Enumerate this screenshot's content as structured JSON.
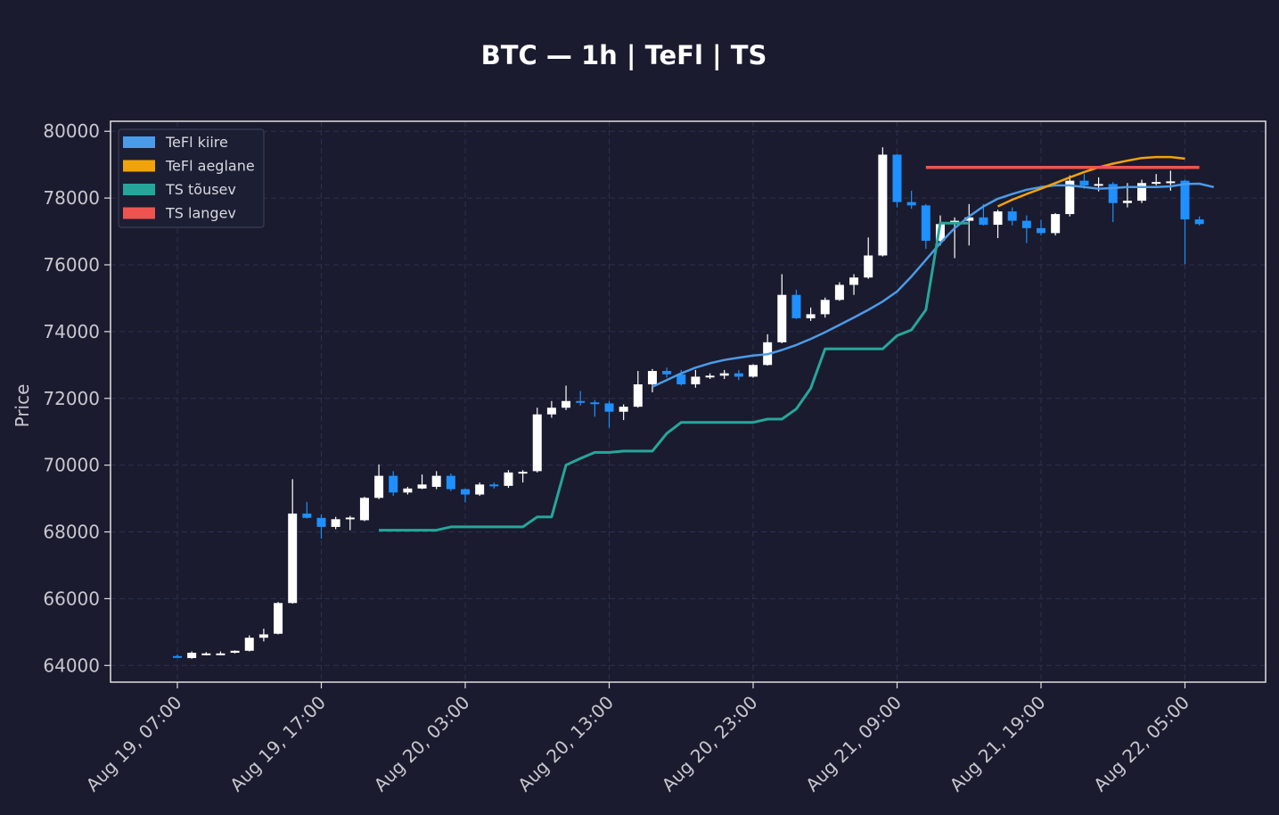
{
  "chart_data": {
    "type": "candlestick",
    "title": "BTC — 1h  |  TeFl  |  TS",
    "xlabel": "",
    "ylabel": "Price",
    "ylim": [
      63500,
      80300
    ],
    "y_ticks": [
      64000,
      66000,
      68000,
      70000,
      72000,
      74000,
      76000,
      78000,
      80000
    ],
    "x_ticks": [
      "Aug 19, 07:00",
      "Aug 19, 17:00",
      "Aug 20, 03:00",
      "Aug 20, 13:00",
      "Aug 20, 23:00",
      "Aug 21, 09:00",
      "Aug 21, 19:00",
      "Aug 22, 05:00"
    ],
    "x_start": "Aug 19, 07:00",
    "bar_interval": "1h",
    "bar_count": 72,
    "grid": true,
    "legend_position": "upper-left",
    "colors": {
      "background": "#1a1b2e",
      "up_candle": "#ffffff",
      "down_candle": "#1e90ff",
      "grid": "#2d3050",
      "frame": "#e0e0e0"
    },
    "candles": [
      [
        64280,
        64330,
        64230,
        64250
      ],
      [
        64220,
        64420,
        64200,
        64380
      ],
      [
        64330,
        64400,
        64300,
        64360
      ],
      [
        64350,
        64420,
        64320,
        64360
      ],
      [
        64380,
        64450,
        64360,
        64440
      ],
      [
        64440,
        64900,
        64420,
        64830
      ],
      [
        64830,
        65100,
        64720,
        64930
      ],
      [
        64950,
        65900,
        64930,
        65870
      ],
      [
        65870,
        69580,
        65850,
        68550
      ],
      [
        68550,
        68900,
        68400,
        68420
      ],
      [
        68420,
        68520,
        67800,
        68150
      ],
      [
        68150,
        68450,
        68080,
        68380
      ],
      [
        68380,
        68480,
        68050,
        68430
      ],
      [
        68350,
        69050,
        68320,
        69020
      ],
      [
        69020,
        70020,
        68980,
        69680
      ],
      [
        69680,
        69820,
        69080,
        69180
      ],
      [
        69180,
        69350,
        69120,
        69300
      ],
      [
        69300,
        69720,
        69280,
        69420
      ],
      [
        69350,
        69820,
        69280,
        69680
      ],
      [
        69680,
        69750,
        69220,
        69280
      ],
      [
        69280,
        69300,
        68880,
        69120
      ],
      [
        69120,
        69480,
        69080,
        69420
      ],
      [
        69420,
        69480,
        69300,
        69380
      ],
      [
        69380,
        69850,
        69320,
        69780
      ],
      [
        69780,
        69850,
        69480,
        69800
      ],
      [
        69820,
        71720,
        69780,
        71520
      ],
      [
        71520,
        71920,
        71420,
        71720
      ],
      [
        71720,
        72380,
        71650,
        71920
      ],
      [
        71920,
        72220,
        71780,
        71880
      ],
      [
        71880,
        71950,
        71450,
        71850
      ],
      [
        71850,
        71920,
        71120,
        71600
      ],
      [
        71600,
        71820,
        71350,
        71750
      ],
      [
        71750,
        72820,
        71720,
        72420
      ],
      [
        72420,
        72880,
        72180,
        72820
      ],
      [
        72820,
        72920,
        72620,
        72720
      ],
      [
        72720,
        72850,
        72380,
        72420
      ],
      [
        72420,
        72850,
        72320,
        72650
      ],
      [
        72650,
        72750,
        72580,
        72680
      ],
      [
        72680,
        72850,
        72580,
        72750
      ],
      [
        72750,
        72850,
        72550,
        72650
      ],
      [
        72650,
        73020,
        72620,
        73000
      ],
      [
        73000,
        73920,
        72980,
        73680
      ],
      [
        73680,
        75720,
        73650,
        75100
      ],
      [
        75100,
        75250,
        74380,
        74400
      ],
      [
        74400,
        74720,
        74320,
        74520
      ],
      [
        74520,
        75020,
        74420,
        74950
      ],
      [
        74950,
        75480,
        74920,
        75400
      ],
      [
        75400,
        75720,
        75100,
        75620
      ],
      [
        75620,
        76820,
        75580,
        76280
      ],
      [
        76280,
        79520,
        76250,
        79300
      ],
      [
        79300,
        79320,
        77720,
        77880
      ],
      [
        77880,
        78220,
        77680,
        77780
      ],
      [
        77780,
        77820,
        76480,
        76720
      ],
      [
        76720,
        77480,
        76580,
        77220
      ],
      [
        77220,
        77420,
        76200,
        77320
      ],
      [
        77320,
        77820,
        76580,
        77420
      ],
      [
        77420,
        77820,
        77180,
        77200
      ],
      [
        77200,
        77650,
        76800,
        77600
      ],
      [
        77600,
        77720,
        77180,
        77320
      ],
      [
        77320,
        77480,
        76650,
        77100
      ],
      [
        77100,
        77350,
        76880,
        76950
      ],
      [
        76950,
        77550,
        76880,
        77520
      ],
      [
        77520,
        78680,
        77450,
        78520
      ],
      [
        78520,
        78720,
        78280,
        78380
      ],
      [
        78380,
        78620,
        78200,
        78420
      ],
      [
        78420,
        78480,
        77280,
        77850
      ],
      [
        77850,
        78450,
        77720,
        77920
      ],
      [
        77920,
        78550,
        77850,
        78450
      ],
      [
        78450,
        78720,
        78380,
        78480
      ],
      [
        78480,
        78820,
        78220,
        78500
      ],
      [
        78520,
        78550,
        76020,
        77360
      ],
      [
        77360,
        77450,
        77180,
        77220
      ]
    ],
    "series": [
      {
        "name": "TeFl kiire",
        "color": "#4c9be8",
        "start_index": 33,
        "values": [
          72350,
          72550,
          72750,
          72920,
          73050,
          73150,
          73220,
          73280,
          73320,
          73450,
          73600,
          73780,
          73980,
          74200,
          74420,
          74650,
          74900,
          75200,
          75650,
          76150,
          76650,
          77100,
          77450,
          77750,
          77980,
          78120,
          78250,
          78330,
          78380,
          78380,
          78330,
          78280,
          78300,
          78330,
          78330,
          78330,
          78350,
          78420,
          78430,
          78330
        ]
      },
      {
        "name": "TeFl aeglane",
        "color": "#f0a30a",
        "start_index": 57,
        "values": [
          77750,
          77950,
          78120,
          78280,
          78450,
          78620,
          78780,
          78920,
          79030,
          79120,
          79200,
          79230,
          79230,
          79180
        ]
      },
      {
        "name": "TS tõusev",
        "color": "#26a69a",
        "start_index": 14,
        "values": [
          68050,
          68050,
          68050,
          68050,
          68050,
          68150,
          68150,
          68150,
          68150,
          68150,
          68150,
          68450,
          68450,
          70000,
          70200,
          70380,
          70380,
          70420,
          70420,
          70420,
          70950,
          71280,
          71280,
          71280,
          71280,
          71280,
          71280,
          71380,
          71380,
          71680,
          72300,
          73480,
          73480,
          73480,
          73480,
          73480,
          73880,
          74050,
          74650,
          77250,
          77250,
          77250
        ]
      },
      {
        "name": "TS langev",
        "color": "#ef5350",
        "start_index": 52,
        "values": [
          78920,
          78920,
          78920,
          78920,
          78920,
          78920,
          78920,
          78920,
          78920,
          78920,
          78920,
          78920,
          78920,
          78920,
          78920,
          78920,
          78920,
          78920,
          78920,
          78920
        ]
      }
    ]
  }
}
